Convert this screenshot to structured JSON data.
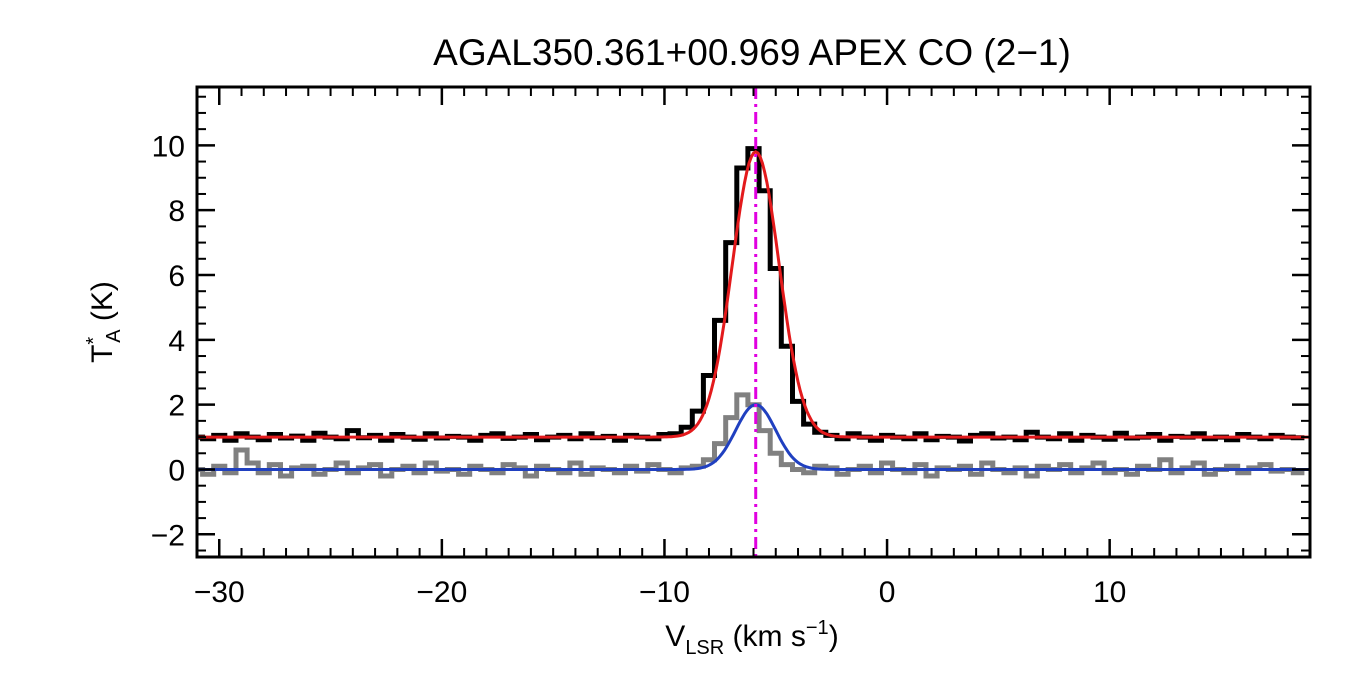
{
  "chart_data": {
    "type": "line",
    "title": "AGAL350.361+00.969  APEX CO (2−1)",
    "xlabel": {
      "main": "V",
      "sub": "LSR",
      "rest": " (km s",
      "sup": "−1",
      "end": ")"
    },
    "ylabel": {
      "main": "T",
      "sup": "*",
      "sub": "A",
      "rest": " (K)"
    },
    "xlim": [
      -31,
      19
    ],
    "ylim": [
      -2.7,
      11.8
    ],
    "x_ticks": [
      -30,
      -20,
      -10,
      0,
      10
    ],
    "x_tick_labels": [
      "−30",
      "−20",
      "−10",
      "0",
      "10"
    ],
    "y_ticks": [
      -2,
      0,
      2,
      4,
      6,
      8,
      10
    ],
    "y_tick_labels": [
      "−2",
      "0",
      "2",
      "4",
      "6",
      "8",
      "10"
    ],
    "marker_velocity": -5.9,
    "series": [
      {
        "role": "observed spectrum (offset +1 K)",
        "color": "#000000",
        "style": "histogram",
        "x": [
          -31.0,
          -30.5,
          -30.0,
          -29.5,
          -29.0,
          -28.5,
          -28.0,
          -27.5,
          -27.0,
          -26.5,
          -26.0,
          -25.5,
          -25.0,
          -24.5,
          -24.0,
          -23.5,
          -23.0,
          -22.5,
          -22.0,
          -21.5,
          -21.0,
          -20.5,
          -20.0,
          -19.5,
          -19.0,
          -18.5,
          -18.0,
          -17.5,
          -17.0,
          -16.5,
          -16.0,
          -15.5,
          -15.0,
          -14.5,
          -14.0,
          -13.5,
          -13.0,
          -12.5,
          -12.0,
          -11.5,
          -11.0,
          -10.5,
          -10.0,
          -9.5,
          -9.0,
          -8.5,
          -8.0,
          -7.5,
          -7.0,
          -6.5,
          -6.0,
          -5.5,
          -5.0,
          -4.5,
          -4.0,
          -3.5,
          -3.0,
          -2.5,
          -2.0,
          -1.5,
          -1.0,
          -0.5,
          0.0,
          0.5,
          1.0,
          1.5,
          2.0,
          2.5,
          3.0,
          3.5,
          4.0,
          4.5,
          5.0,
          5.5,
          6.0,
          6.5,
          7.0,
          7.5,
          8.0,
          8.5,
          9.0,
          9.5,
          10.0,
          10.5,
          11.0,
          11.5,
          12.0,
          12.5,
          13.0,
          13.5,
          14.0,
          14.5,
          15.0,
          15.5,
          16.0,
          16.5,
          17.0,
          17.5,
          18.0,
          18.5
        ],
        "y": [
          1.0,
          0.95,
          1.05,
          0.9,
          1.1,
          1.0,
          0.92,
          1.08,
          0.97,
          1.03,
          0.9,
          1.12,
          1.0,
          0.95,
          1.2,
          0.98,
          1.05,
          0.9,
          1.08,
          1.0,
          0.93,
          1.1,
          0.97,
          1.02,
          1.0,
          0.9,
          1.05,
          1.1,
          0.96,
          1.0,
          1.08,
          0.92,
          1.0,
          1.05,
          0.95,
          1.1,
          0.98,
          1.02,
          0.9,
          1.05,
          1.0,
          0.95,
          1.08,
          1.1,
          1.3,
          1.8,
          2.9,
          4.6,
          7.0,
          9.3,
          9.9,
          8.6,
          6.2,
          3.8,
          2.1,
          1.4,
          1.15,
          1.05,
          0.95,
          1.1,
          1.0,
          0.9,
          1.05,
          1.0,
          0.95,
          1.1,
          0.92,
          1.02,
          1.0,
          0.88,
          1.05,
          1.1,
          0.97,
          1.0,
          0.92,
          1.15,
          1.0,
          0.95,
          1.1,
          0.9,
          1.05,
          1.0,
          0.93,
          1.12,
          0.97,
          1.0,
          1.08,
          0.9,
          1.02,
          1.0,
          1.1,
          0.95,
          1.0,
          0.92,
          1.08,
          1.0,
          0.95,
          1.05,
          1.0,
          0.98
        ]
      },
      {
        "role": "second spectrum",
        "color": "#808080",
        "style": "histogram",
        "x": [
          -31.0,
          -30.5,
          -30.0,
          -29.5,
          -29.0,
          -28.5,
          -28.0,
          -27.5,
          -27.0,
          -26.5,
          -26.0,
          -25.5,
          -25.0,
          -24.5,
          -24.0,
          -23.5,
          -23.0,
          -22.5,
          -22.0,
          -21.5,
          -21.0,
          -20.5,
          -20.0,
          -19.5,
          -19.0,
          -18.5,
          -18.0,
          -17.5,
          -17.0,
          -16.5,
          -16.0,
          -15.5,
          -15.0,
          -14.5,
          -14.0,
          -13.5,
          -13.0,
          -12.5,
          -12.0,
          -11.5,
          -11.0,
          -10.5,
          -10.0,
          -9.5,
          -9.0,
          -8.5,
          -8.0,
          -7.5,
          -7.0,
          -6.5,
          -6.0,
          -5.5,
          -5.0,
          -4.5,
          -4.0,
          -3.5,
          -3.0,
          -2.5,
          -2.0,
          -1.5,
          -1.0,
          -0.5,
          0.0,
          0.5,
          1.0,
          1.5,
          2.0,
          2.5,
          3.0,
          3.5,
          4.0,
          4.5,
          5.0,
          5.5,
          6.0,
          6.5,
          7.0,
          7.5,
          8.0,
          8.5,
          9.0,
          9.5,
          10.0,
          10.5,
          11.0,
          11.5,
          12.0,
          12.5,
          13.0,
          13.5,
          14.0,
          14.5,
          15.0,
          15.5,
          16.0,
          16.5,
          17.0,
          17.5,
          18.0,
          18.5
        ],
        "y": [
          0.0,
          -0.15,
          0.1,
          -0.1,
          0.6,
          0.2,
          -0.1,
          0.15,
          -0.2,
          0.05,
          0.1,
          -0.15,
          0.0,
          0.2,
          -0.1,
          0.05,
          0.15,
          -0.2,
          0.0,
          0.1,
          -0.1,
          0.2,
          -0.05,
          0.0,
          -0.15,
          0.1,
          0.0,
          -0.1,
          0.15,
          0.05,
          -0.2,
          0.1,
          0.0,
          -0.1,
          0.2,
          -0.15,
          0.05,
          0.0,
          -0.1,
          0.1,
          -0.05,
          0.15,
          0.0,
          -0.1,
          0.05,
          0.1,
          0.3,
          0.8,
          1.6,
          2.3,
          2.0,
          1.2,
          0.5,
          0.15,
          0.0,
          -0.1,
          0.1,
          0.05,
          -0.15,
          0.0,
          0.1,
          -0.1,
          0.2,
          0.0,
          -0.1,
          0.15,
          -0.2,
          0.05,
          0.0,
          0.1,
          -0.15,
          0.2,
          0.0,
          -0.1,
          0.05,
          -0.2,
          0.1,
          0.0,
          0.15,
          -0.1,
          0.05,
          0.2,
          -0.1,
          0.0,
          -0.15,
          0.1,
          0.0,
          0.3,
          -0.1,
          0.05,
          0.2,
          -0.15,
          0.0,
          0.1,
          -0.1,
          0.05,
          0.15,
          -0.05,
          0.0,
          -0.1
        ]
      },
      {
        "role": "gaussian fit (offset)",
        "color": "#e31a1c",
        "style": "gaussian",
        "amplitude": 8.8,
        "center": -5.9,
        "sigma": 1.05,
        "offset": 1.0
      },
      {
        "role": "gaussian fit",
        "color": "#2040c0",
        "style": "gaussian",
        "amplitude": 2.0,
        "center": -5.9,
        "sigma": 0.9,
        "offset": 0.0
      }
    ],
    "marker_color": "#e000e0",
    "grid": false
  }
}
